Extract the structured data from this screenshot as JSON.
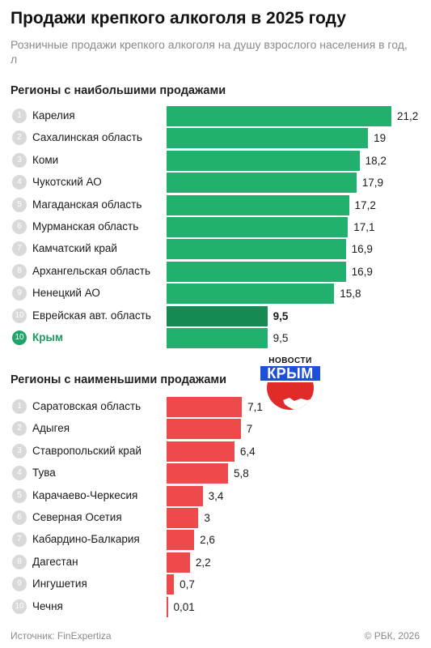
{
  "title": "Продажи крепкого алкоголя в 2025 году",
  "subtitle": "Розничные продажи крепкого алкоголя на душу взрослого населения в год, л",
  "logo": {
    "top_text": "НОВОСТИ",
    "word": "КРЫМ"
  },
  "footer": {
    "source": "Источник: FinExpertiza",
    "copyright": "© РБК, 2026"
  },
  "colors": {
    "top": "#22b06e",
    "top_highlight": "#168a52",
    "bottom": "#ee4a4c",
    "accent_text": "#1b9a60"
  },
  "chart_data": [
    {
      "type": "bar",
      "orientation": "horizontal",
      "title": "Регионы с наибольшими продажами",
      "categories": [
        "Карелия",
        "Сахалинская область",
        "Коми",
        "Чукотский АО",
        "Магаданская область",
        "Мурманская область",
        "Камчатский край",
        "Архангельская область",
        "Ненецкий АО",
        "Еврейская авт. область",
        "Крым"
      ],
      "ranks": [
        "1",
        "2",
        "3",
        "4",
        "5",
        "6",
        "7",
        "8",
        "9",
        "10",
        "10"
      ],
      "values": [
        21.2,
        19,
        18.2,
        17.9,
        17.2,
        17.1,
        16.9,
        16.9,
        15.8,
        9.5,
        9.5
      ],
      "value_labels": [
        "21,2",
        "19",
        "18,2",
        "17,9",
        "17,2",
        "17,1",
        "16,9",
        "16,9",
        "15,8",
        "9,5",
        "9,5"
      ],
      "highlight_index": 9,
      "accent_index": 10
    },
    {
      "type": "bar",
      "orientation": "horizontal",
      "title": "Регионы с наименьшими продажами",
      "categories": [
        "Саратовская область",
        "Адыгея",
        "Ставропольский край",
        "Тува",
        "Карачаево-Черкесия",
        "Северная Осетия",
        "Кабардино-Балкария",
        "Дагестан",
        "Ингушетия",
        "Чечня"
      ],
      "ranks": [
        "1",
        "2",
        "3",
        "4",
        "5",
        "6",
        "7",
        "8",
        "9",
        "10"
      ],
      "values": [
        7.1,
        7,
        6.4,
        5.8,
        3.4,
        3,
        2.6,
        2.2,
        0.7,
        0.01
      ],
      "value_labels": [
        "7,1",
        "7",
        "6,4",
        "5,8",
        "3,4",
        "3",
        "2,6",
        "2,2",
        "0,7",
        "0,01"
      ]
    }
  ]
}
